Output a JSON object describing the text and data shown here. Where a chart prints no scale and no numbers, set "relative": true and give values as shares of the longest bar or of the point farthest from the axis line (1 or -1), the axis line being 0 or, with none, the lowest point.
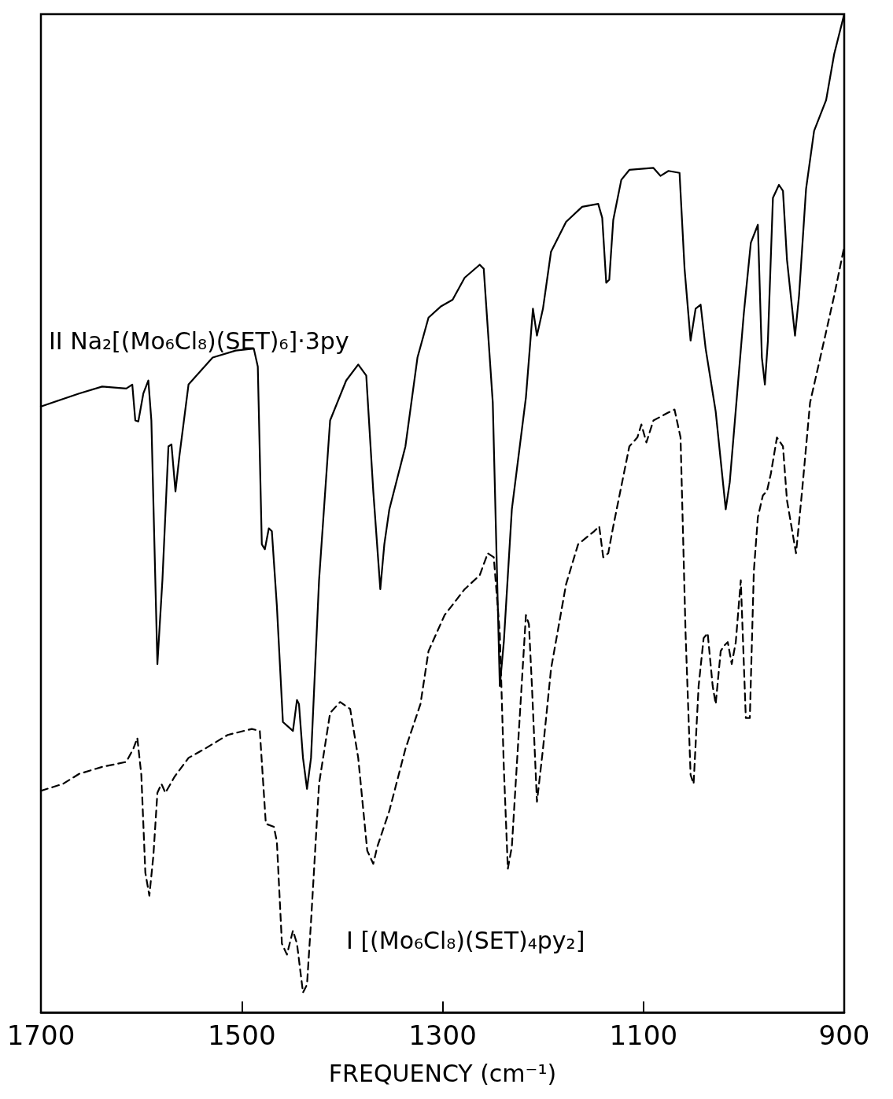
{
  "chart_data": {
    "type": "line",
    "relative": true,
    "xlabel": "FREQUENCY (cm⁻¹)",
    "xlim": [
      1700,
      900
    ],
    "xticks": [
      1700,
      1500,
      1300,
      1100,
      900
    ],
    "grid": false,
    "marker": "none",
    "series": [
      {
        "name": "II Na₂[(Mo₆Cl₈)(SET)₆]·3py",
        "color": "#000000",
        "line_style": "solid",
        "x": [
          1700,
          1662,
          1639,
          1615,
          1609,
          1606,
          1603,
          1598,
          1593,
          1590,
          1584,
          1579,
          1573,
          1570,
          1566,
          1562,
          1553,
          1529,
          1506,
          1488,
          1484,
          1480,
          1477,
          1473,
          1470,
          1465,
          1459,
          1449,
          1445,
          1443,
          1439,
          1435,
          1431,
          1423,
          1412,
          1396,
          1384,
          1376,
          1369,
          1362,
          1358,
          1353,
          1337,
          1325,
          1314,
          1302,
          1290,
          1278,
          1263,
          1259,
          1250,
          1243,
          1239,
          1231,
          1217,
          1210,
          1206,
          1200,
          1192,
          1177,
          1161,
          1145,
          1141,
          1137,
          1134,
          1130,
          1122,
          1114,
          1090,
          1083,
          1075,
          1064,
          1059,
          1053,
          1048,
          1043,
          1038,
          1028,
          1018,
          1014,
          1000,
          993,
          986,
          982,
          979,
          976,
          971,
          965,
          961,
          957,
          949,
          945,
          938,
          930,
          918,
          910,
          900
        ],
        "values": [
          0.607,
          0.62,
          0.627,
          0.625,
          0.629,
          0.593,
          0.592,
          0.62,
          0.633,
          0.593,
          0.349,
          0.433,
          0.567,
          0.569,
          0.522,
          0.558,
          0.629,
          0.656,
          0.663,
          0.665,
          0.647,
          0.469,
          0.464,
          0.485,
          0.482,
          0.407,
          0.291,
          0.282,
          0.313,
          0.309,
          0.255,
          0.224,
          0.255,
          0.433,
          0.593,
          0.633,
          0.649,
          0.638,
          0.522,
          0.424,
          0.469,
          0.504,
          0.567,
          0.656,
          0.696,
          0.707,
          0.714,
          0.736,
          0.749,
          0.745,
          0.611,
          0.327,
          0.371,
          0.504,
          0.616,
          0.705,
          0.678,
          0.705,
          0.762,
          0.792,
          0.807,
          0.81,
          0.796,
          0.731,
          0.734,
          0.794,
          0.834,
          0.844,
          0.846,
          0.838,
          0.843,
          0.841,
          0.745,
          0.673,
          0.705,
          0.709,
          0.665,
          0.602,
          0.504,
          0.531,
          0.7,
          0.771,
          0.789,
          0.656,
          0.629,
          0.673,
          0.816,
          0.829,
          0.823,
          0.754,
          0.678,
          0.718,
          0.825,
          0.883,
          0.914,
          0.96,
          1.0
        ]
      },
      {
        "name": "I [(Mo₆Cl₈)(SET)₄py₂]",
        "color": "#000000",
        "line_style": "dashed",
        "x": [
          1700,
          1678,
          1662,
          1639,
          1615,
          1608,
          1604,
          1600,
          1596,
          1592,
          1588,
          1584,
          1580,
          1576,
          1567,
          1553,
          1537,
          1514,
          1490,
          1482,
          1476,
          1468,
          1465,
          1460,
          1455,
          1449,
          1445,
          1439,
          1435,
          1431,
          1423,
          1412,
          1402,
          1392,
          1384,
          1375,
          1369,
          1365,
          1353,
          1337,
          1322,
          1314,
          1298,
          1278,
          1263,
          1255,
          1249,
          1243,
          1239,
          1235,
          1231,
          1224,
          1217,
          1214,
          1211,
          1206,
          1200,
          1192,
          1177,
          1165,
          1149,
          1144,
          1140,
          1135,
          1130,
          1114,
          1106,
          1102,
          1097,
          1090,
          1075,
          1069,
          1063,
          1058,
          1053,
          1050,
          1045,
          1040,
          1036,
          1031,
          1028,
          1023,
          1020,
          1016,
          1012,
          1008,
          1003,
          998,
          994,
          990,
          986,
          981,
          977,
          973,
          967,
          961,
          957,
          948,
          942,
          934,
          918,
          910,
          900
        ],
        "values": [
          0.222,
          0.229,
          0.239,
          0.246,
          0.251,
          0.264,
          0.275,
          0.238,
          0.14,
          0.117,
          0.157,
          0.22,
          0.229,
          0.22,
          0.236,
          0.255,
          0.264,
          0.278,
          0.284,
          0.282,
          0.189,
          0.186,
          0.171,
          0.069,
          0.058,
          0.082,
          0.069,
          0.02,
          0.028,
          0.091,
          0.229,
          0.3,
          0.311,
          0.304,
          0.255,
          0.162,
          0.149,
          0.166,
          0.202,
          0.264,
          0.309,
          0.362,
          0.398,
          0.424,
          0.438,
          0.46,
          0.456,
          0.38,
          0.246,
          0.144,
          0.166,
          0.282,
          0.398,
          0.389,
          0.327,
          0.211,
          0.264,
          0.344,
          0.429,
          0.469,
          0.482,
          0.487,
          0.456,
          0.46,
          0.487,
          0.567,
          0.576,
          0.589,
          0.571,
          0.593,
          0.601,
          0.604,
          0.576,
          0.38,
          0.238,
          0.229,
          0.327,
          0.375,
          0.38,
          0.327,
          0.309,
          0.362,
          0.367,
          0.371,
          0.349,
          0.371,
          0.433,
          0.295,
          0.295,
          0.442,
          0.496,
          0.518,
          0.522,
          0.54,
          0.576,
          0.567,
          0.513,
          0.46,
          0.522,
          0.611,
          0.682,
          0.718,
          0.767
        ]
      }
    ]
  }
}
